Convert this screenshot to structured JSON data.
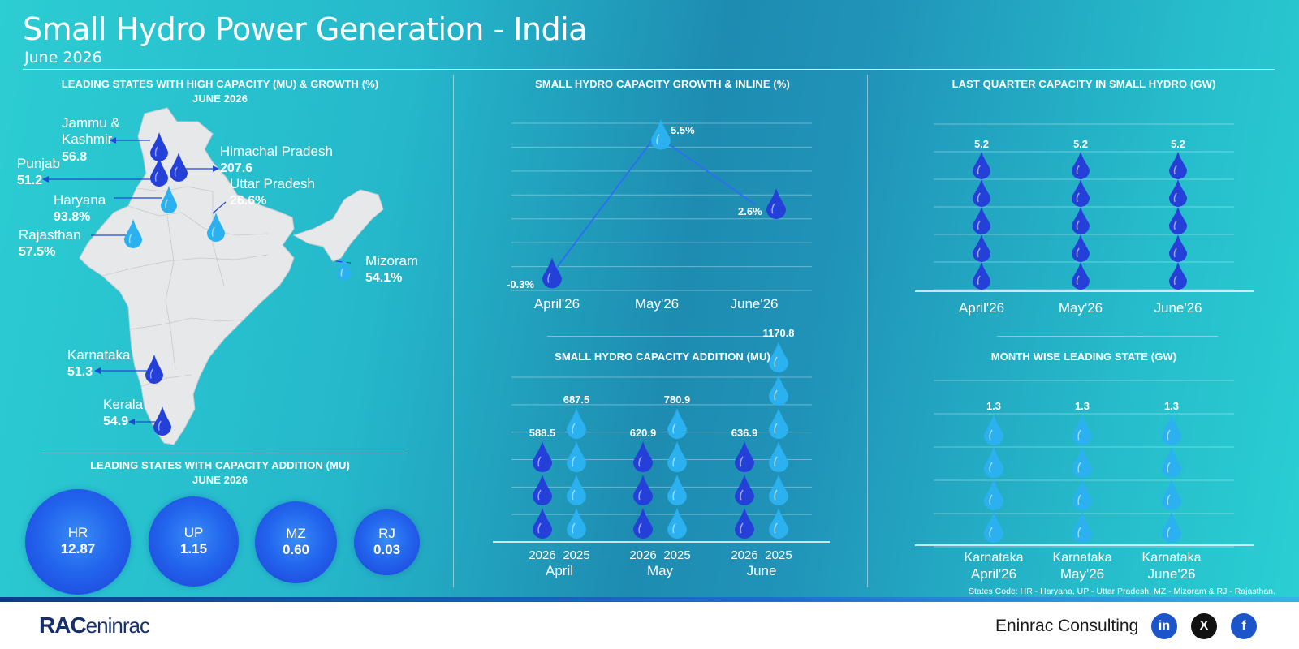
{
  "header": {
    "title": "Small Hydro Power Generation - India",
    "subtitle": "June 2026"
  },
  "map_panel": {
    "title_line1": "LEADING STATES WITH HIGH CAPACITY (MU) & GROWTH (%)",
    "title_line2": "JUNE 2026",
    "states": [
      {
        "name_line1": "Jammu &",
        "name_line2": "Kashmir",
        "value": "56.8"
      },
      {
        "name_line1": "Punjab",
        "name_line2": "",
        "value": "51.2"
      },
      {
        "name_line1": "Himachal Pradesh",
        "name_line2": "",
        "value": "207.6"
      },
      {
        "name_line1": "Haryana",
        "name_line2": "",
        "value": "93.8%"
      },
      {
        "name_line1": "Uttar Pradesh",
        "name_line2": "",
        "value": "26.6%"
      },
      {
        "name_line1": "Rajasthan",
        "name_line2": "",
        "value": "57.5%"
      },
      {
        "name_line1": "Mizoram",
        "name_line2": "",
        "value": "54.1%"
      },
      {
        "name_line1": "Karnataka",
        "name_line2": "",
        "value": "51.3"
      },
      {
        "name_line1": "Kerala",
        "name_line2": "",
        "value": "54.9"
      }
    ]
  },
  "addition_panel": {
    "title_line1": "LEADING STATES WITH CAPACITY ADDITION (MU)",
    "title_line2": "JUNE 2026",
    "bubbles": [
      {
        "code": "HR",
        "value": "12.87"
      },
      {
        "code": "UP",
        "value": "1.15"
      },
      {
        "code": "MZ",
        "value": "0.60"
      },
      {
        "code": "RJ",
        "value": "0.03"
      }
    ]
  },
  "chart_data": [
    {
      "type": "line",
      "title": "SMALL HYDRO CAPACITY GROWTH & INLINE (%)",
      "categories": [
        "April'26",
        "May'26",
        "June'26"
      ],
      "values": [
        -0.3,
        5.5,
        2.6
      ],
      "labels": [
        "-0.3%",
        "5.5%",
        "2.6%"
      ],
      "ylim": [
        -1,
        6
      ],
      "grid": true,
      "colors": {
        "line": "#2c6ff0",
        "drop": "#2440d8"
      }
    },
    {
      "type": "bar",
      "title": "SMALL HYDRO CAPACITY ADDITION (MU)",
      "categories": [
        "April",
        "May",
        "June"
      ],
      "series": [
        {
          "name": "2026",
          "values": [
            588.5,
            620.9,
            636.9
          ],
          "labels": [
            "588.5",
            "620.9",
            "636.9"
          ],
          "color": "#2440d8"
        },
        {
          "name": "2025",
          "values": [
            687.5,
            780.9,
            1170.8
          ],
          "labels": [
            "687.5",
            "780.9",
            "1170.8"
          ],
          "color": "#2bb1f0"
        }
      ],
      "grid": true
    },
    {
      "type": "bar",
      "title": "LAST QUARTER CAPACITY IN SMALL HYDRO (GW)",
      "categories": [
        "April'26",
        "May'26",
        "June'26"
      ],
      "values": [
        5.2,
        5.2,
        5.2
      ],
      "labels": [
        "5.2",
        "5.2",
        "5.2"
      ],
      "color": "#2440d8",
      "grid": true
    },
    {
      "type": "bar",
      "title": "MONTH WISE LEADING STATE (GW)",
      "categories_line1": [
        "Karnataka",
        "Karnataka",
        "Karnataka"
      ],
      "categories": [
        "April'26",
        "May'26",
        "June'26"
      ],
      "values": [
        1.3,
        1.3,
        1.3
      ],
      "labels": [
        "1.3",
        "1.3",
        "1.3"
      ],
      "color": "#2bb1f0",
      "grid": true
    }
  ],
  "footnote": "States Code: HR - Haryana, UP - Uttar Pradesh, MZ - Mizoram & RJ - Rajasthan.",
  "footer": {
    "brand": "Eninrac Consulting",
    "logo_text_a": "RAC",
    "logo_text_b": "eninrac",
    "social": [
      {
        "label": "in",
        "icon": "linkedin-icon",
        "color": "#1b55c9"
      },
      {
        "label": "X",
        "icon": "x-icon",
        "color": "#111111"
      },
      {
        "label": "f",
        "icon": "facebook-icon",
        "color": "#1b55c9"
      }
    ]
  }
}
